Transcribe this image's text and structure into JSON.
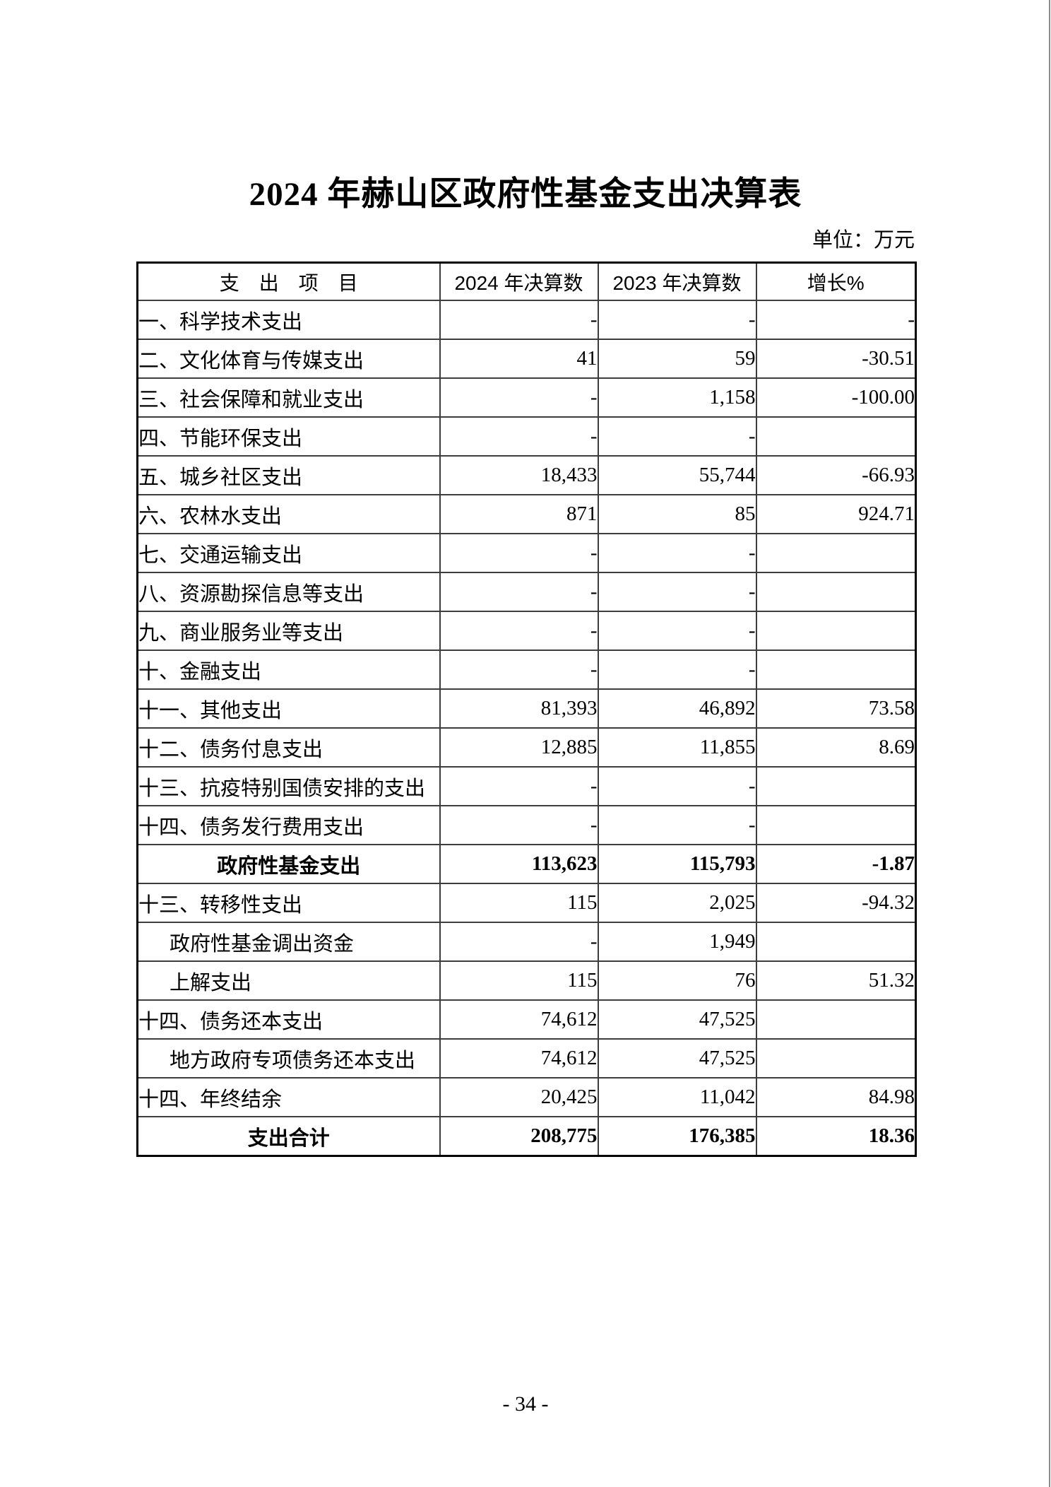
{
  "page": {
    "title": "2024 年赫山区政府性基金支出决算表",
    "unit_label": "单位：万元",
    "page_number": "- 34 -"
  },
  "table": {
    "headers": [
      "支　出　项　目",
      "2024 年决算数",
      "2023 年决算数",
      "增长%"
    ],
    "rows": [
      {
        "label": "一、科学技术支出",
        "y2024": "-",
        "y2023": "-",
        "growth": "-",
        "style": "normal"
      },
      {
        "label": "二、文化体育与传媒支出",
        "y2024": "41",
        "y2023": "59",
        "growth": "-30.51",
        "style": "normal"
      },
      {
        "label": "三、社会保障和就业支出",
        "y2024": "-",
        "y2023": "1,158",
        "growth": "-100.00",
        "style": "normal"
      },
      {
        "label": "四、节能环保支出",
        "y2024": "-",
        "y2023": "-",
        "growth": "",
        "style": "normal"
      },
      {
        "label": "五、城乡社区支出",
        "y2024": "18,433",
        "y2023": "55,744",
        "growth": "-66.93",
        "style": "normal"
      },
      {
        "label": "六、农林水支出",
        "y2024": "871",
        "y2023": "85",
        "growth": "924.71",
        "style": "normal"
      },
      {
        "label": "七、交通运输支出",
        "y2024": "-",
        "y2023": "-",
        "growth": "",
        "style": "normal"
      },
      {
        "label": "八、资源勘探信息等支出",
        "y2024": "-",
        "y2023": "-",
        "growth": "",
        "style": "normal"
      },
      {
        "label": "九、商业服务业等支出",
        "y2024": "-",
        "y2023": "-",
        "growth": "",
        "style": "normal"
      },
      {
        "label": "十、金融支出",
        "y2024": "-",
        "y2023": "-",
        "growth": "",
        "style": "normal"
      },
      {
        "label": "十一、其他支出",
        "y2024": "81,393",
        "y2023": "46,892",
        "growth": "73.58",
        "style": "normal"
      },
      {
        "label": "十二、债务付息支出",
        "y2024": "12,885",
        "y2023": "11,855",
        "growth": "8.69",
        "style": "normal"
      },
      {
        "label": "十三、抗疫特别国债安排的支出",
        "y2024": "-",
        "y2023": "-",
        "growth": "",
        "style": "normal"
      },
      {
        "label": "十四、债务发行费用支出",
        "y2024": "-",
        "y2023": "-",
        "growth": "",
        "style": "normal"
      },
      {
        "label": "政府性基金支出",
        "y2024": "113,623",
        "y2023": "115,793",
        "growth": "-1.87",
        "style": "summary"
      },
      {
        "label": "十三、转移性支出",
        "y2024": "115",
        "y2023": "2,025",
        "growth": "-94.32",
        "style": "normal"
      },
      {
        "label": "政府性基金调出资金",
        "y2024": "-",
        "y2023": "1,949",
        "growth": "",
        "style": "indent"
      },
      {
        "label": "上解支出",
        "y2024": "115",
        "y2023": "76",
        "growth": "51.32",
        "style": "indent"
      },
      {
        "label": "十四、债务还本支出",
        "y2024": "74,612",
        "y2023": "47,525",
        "growth": "",
        "style": "normal"
      },
      {
        "label": "地方政府专项债务还本支出",
        "y2024": "74,612",
        "y2023": "47,525",
        "growth": "",
        "style": "indent"
      },
      {
        "label": "十四、年终结余",
        "y2024": "20,425",
        "y2023": "11,042",
        "growth": "84.98",
        "style": "normal"
      },
      {
        "label": "支出合计",
        "y2024": "208,775",
        "y2023": "176,385",
        "growth": "18.36",
        "style": "summary"
      }
    ]
  }
}
